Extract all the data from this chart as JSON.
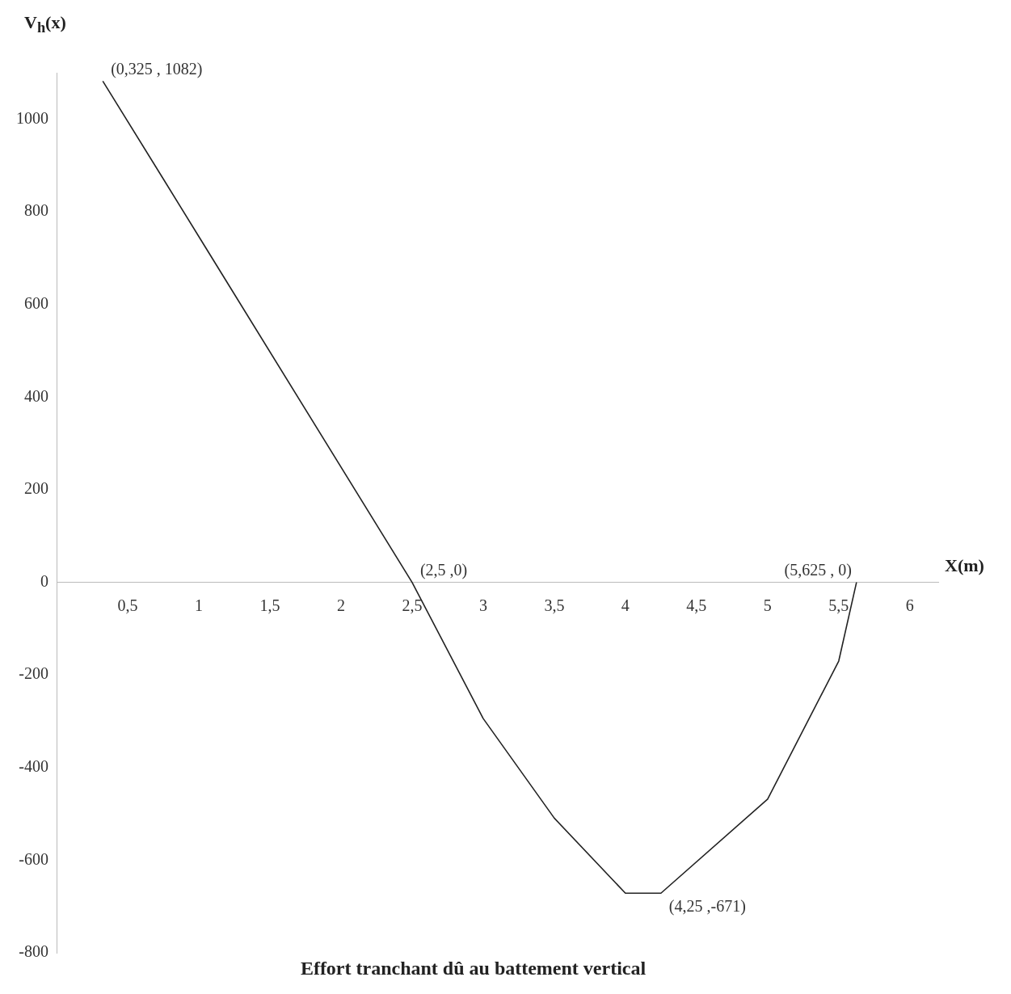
{
  "chart_data": {
    "type": "line",
    "title": "Effort tranchant dû au battement vertical",
    "xlabel": "X(m)",
    "ylabel": "V$_{h}$(x)",
    "x": [
      0.325,
      0.75,
      2.5,
      3.0,
      3.5,
      4.0,
      4.25,
      5.0,
      5.5,
      5.625
    ],
    "series": [
      {
        "color": "#222222",
        "values": [
          1082,
          871,
          0,
          -294,
          -509,
          -671,
          -671,
          -468,
          -170,
          0
        ]
      }
    ],
    "xlim": [
      0,
      6.2
    ],
    "ylim": [
      -800,
      1100
    ],
    "xticks": [
      {
        "value": 0.5,
        "label": "0,5"
      },
      1,
      {
        "value": 1.5,
        "label": "1,5"
      },
      2,
      {
        "value": 2.5,
        "label": "2,5"
      },
      3,
      {
        "value": 3.5,
        "label": "3,5"
      },
      4,
      {
        "value": 4.5,
        "label": "4,5"
      },
      5,
      {
        "value": 5.5,
        "label": "5,5"
      },
      6
    ],
    "yticks": [
      -800,
      -600,
      -400,
      -200,
      0,
      200,
      400,
      600,
      800,
      1000
    ],
    "annotations": [
      {
        "text": "(0,325 , 1082)",
        "x": 0.325,
        "y": 1082
      },
      {
        "text": "(2,5 ,0)",
        "x": 2.5,
        "y": 0
      },
      {
        "text": "(5,625 , 0)",
        "x": 5.625,
        "y": 0
      },
      {
        "text": "(4,25 ,-671)",
        "x": 4.25,
        "y": -671
      }
    ],
    "grid": false,
    "legend": false,
    "marker": "none",
    "line_style": "solid"
  }
}
